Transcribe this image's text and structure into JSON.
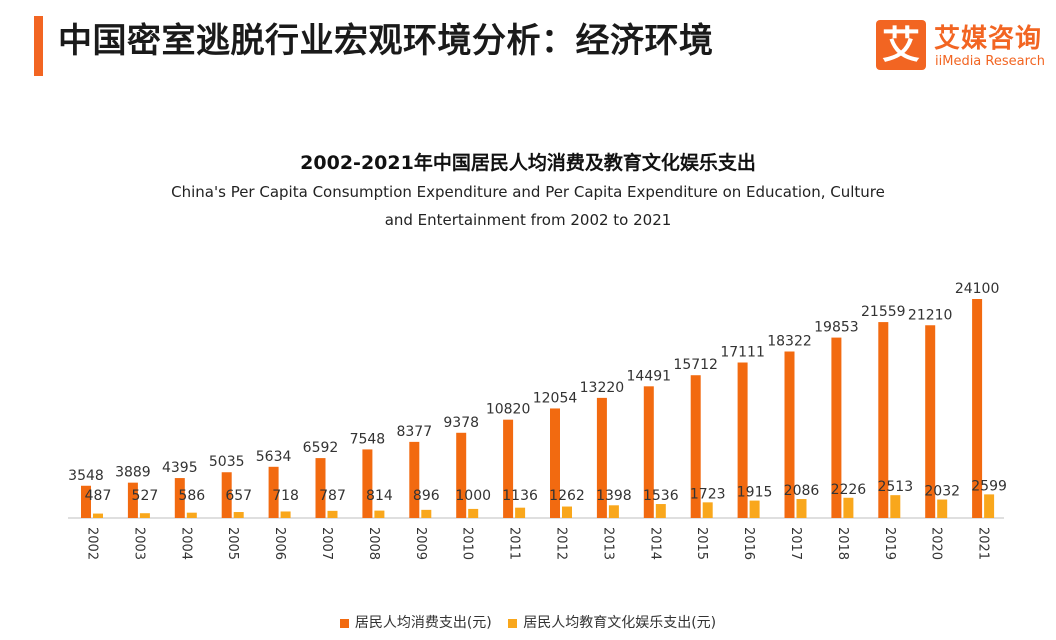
{
  "header": {
    "title": "中国密室逃脱行业宏观环境分析：经济环境",
    "logo_char": "艾",
    "logo_cn": "艾媒咨询",
    "logo_en": "iiMedia Research"
  },
  "colors": {
    "accent": "#f26522",
    "series1": "#f26a10",
    "series2": "#f9a71c"
  },
  "chart_data": {
    "type": "bar",
    "title": "2002-2021年中国居民人均消费及教育文化娱乐支出",
    "subtitle": "China's Per Capita Consumption Expenditure and Per Capita Expenditure on Education, Culture and Entertainment from 2002 to 2021",
    "categories": [
      "2002",
      "2003",
      "2004",
      "2005",
      "2006",
      "2007",
      "2008",
      "2009",
      "2010",
      "2011",
      "2012",
      "2013",
      "2014",
      "2015",
      "2016",
      "2017",
      "2018",
      "2019",
      "2020",
      "2021"
    ],
    "series": [
      {
        "name": "居民人均消费支出(元)",
        "values": [
          3548,
          3889,
          4395,
          5035,
          5634,
          6592,
          7548,
          8377,
          9378,
          10820,
          12054,
          13220,
          14491,
          15712,
          17111,
          18322,
          19853,
          21559,
          21210,
          24100
        ]
      },
      {
        "name": "居民人均教育文化娱乐支出(元)",
        "values": [
          487,
          527,
          586,
          657,
          718,
          787,
          814,
          896,
          1000,
          1136,
          1262,
          1398,
          1536,
          1723,
          1915,
          2086,
          2226,
          2513,
          2032,
          2599
        ]
      }
    ],
    "xlabel": "",
    "ylabel": "",
    "ylim": [
      0,
      24100
    ],
    "grid": false,
    "legend": "bottom-center"
  }
}
